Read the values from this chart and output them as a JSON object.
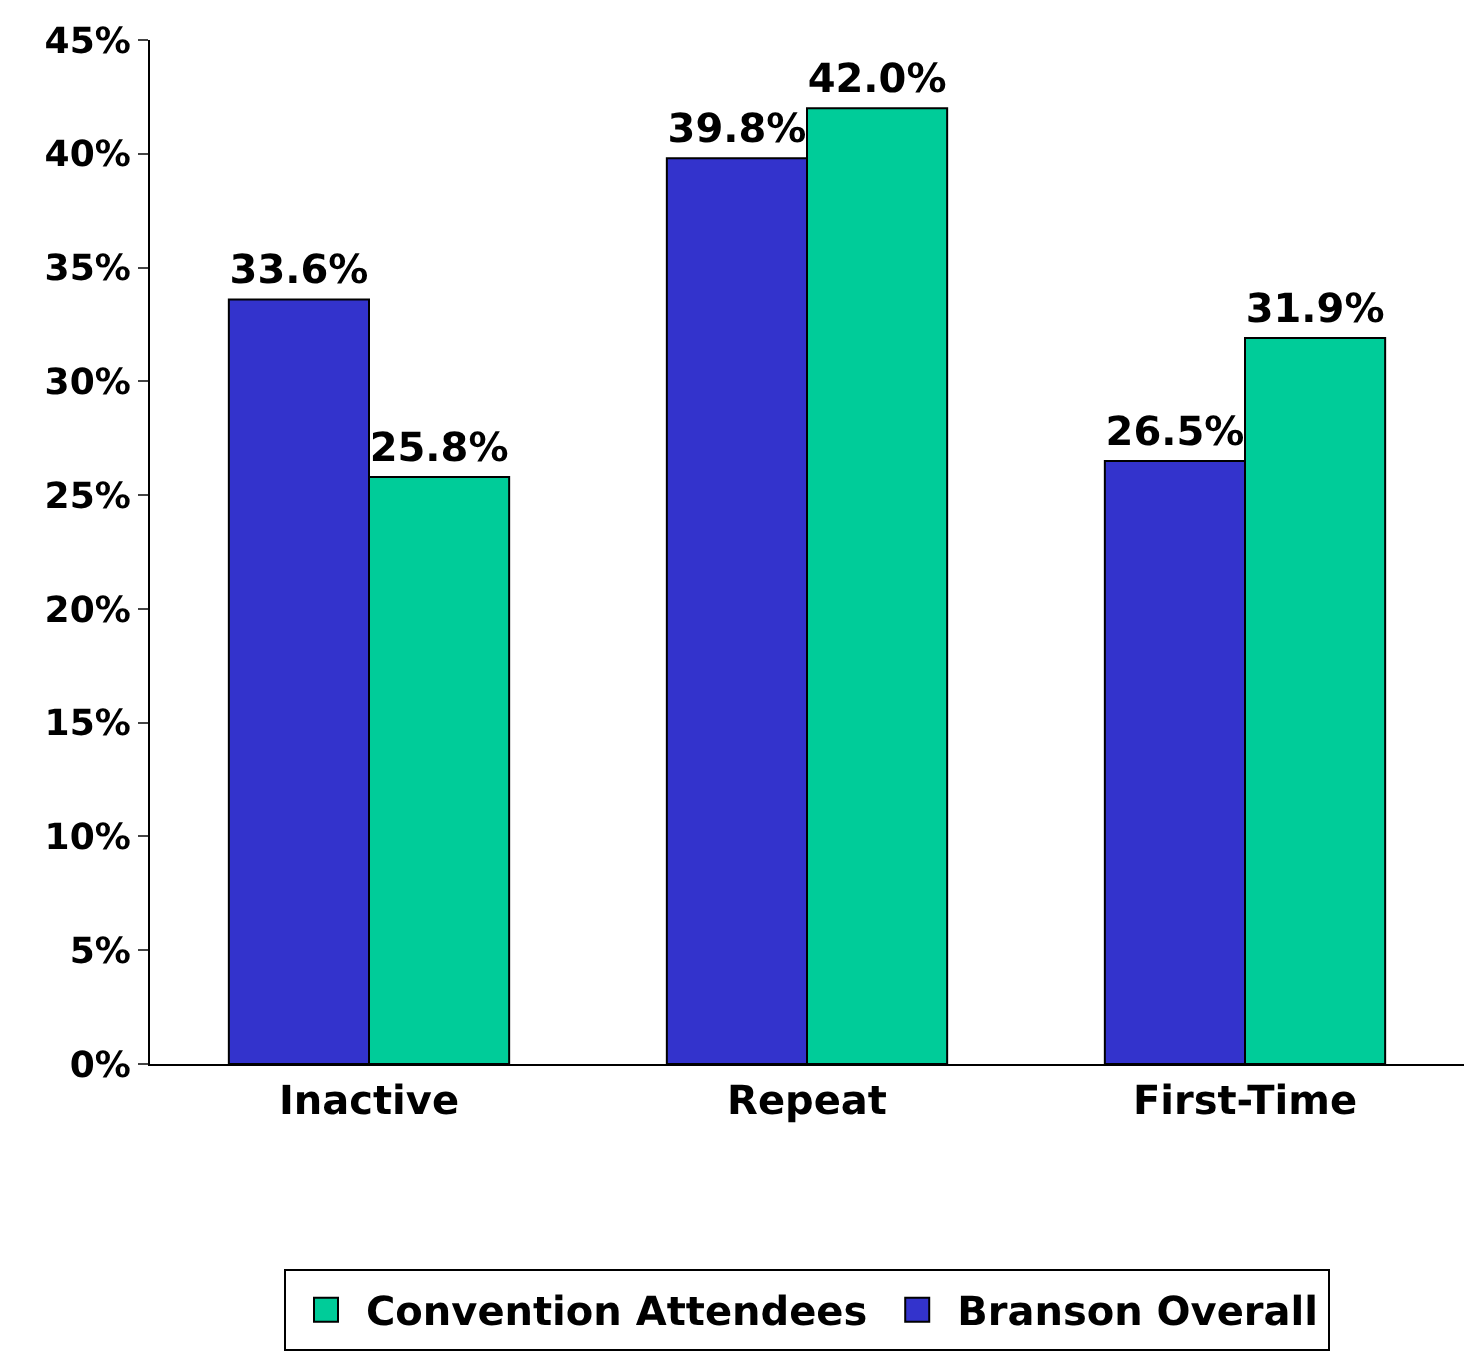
{
  "chart_data": {
    "type": "bar",
    "categories": [
      "Inactive",
      "Repeat",
      "First-Time"
    ],
    "series": [
      {
        "name": "Branson Overall",
        "color": "#3333cc",
        "values": [
          33.6,
          39.8,
          26.5
        ],
        "value_labels": [
          "33.6%",
          "39.8%",
          "26.5%"
        ]
      },
      {
        "name": "Convention Attendees",
        "color": "#00cc99",
        "values": [
          25.8,
          42.0,
          31.9
        ],
        "value_labels": [
          "25.8%",
          "42.0%",
          "31.9%"
        ]
      }
    ],
    "ylim": [
      0,
      45
    ],
    "yticks": [
      {
        "value": 0,
        "label": "0%"
      },
      {
        "value": 5,
        "label": "5%"
      },
      {
        "value": 10,
        "label": "10%"
      },
      {
        "value": 15,
        "label": "15%"
      },
      {
        "value": 20,
        "label": "20%"
      },
      {
        "value": 25,
        "label": "25%"
      },
      {
        "value": 30,
        "label": "30%"
      },
      {
        "value": 35,
        "label": "35%"
      },
      {
        "value": 40,
        "label": "40%"
      },
      {
        "value": 45,
        "label": "45%"
      }
    ],
    "legend": "bottom"
  }
}
